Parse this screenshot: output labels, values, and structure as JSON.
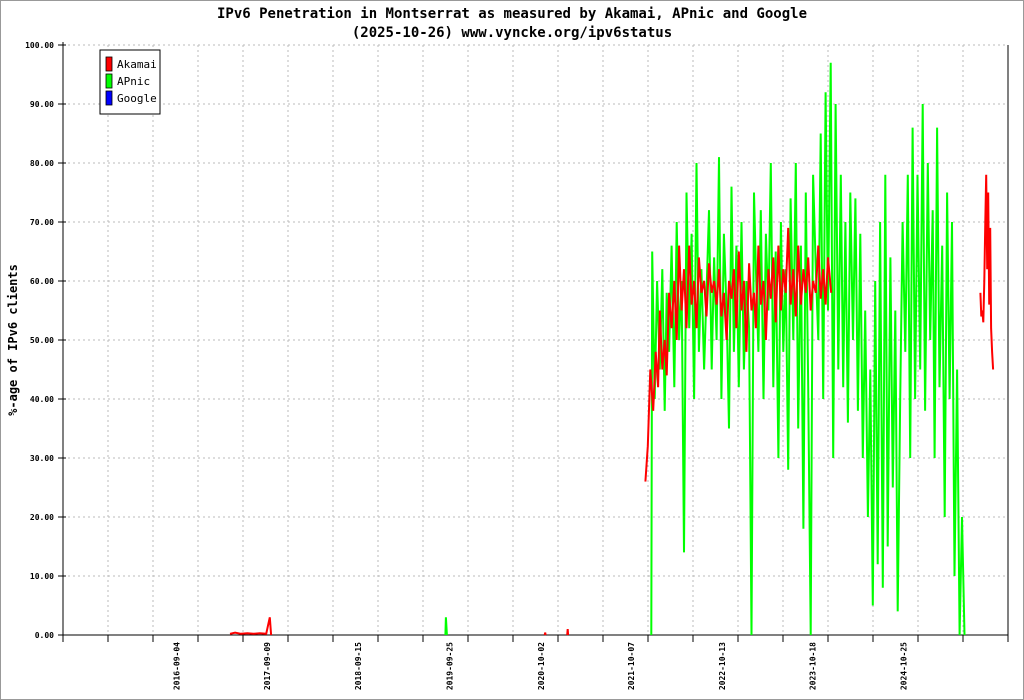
{
  "chart_data": {
    "type": "line",
    "title": "IPv6 Penetration in Montserrat as measured by Akamai, APnic and Google",
    "subtitle": "(2025-10-26) www.vyncke.org/ipv6status",
    "xlabel": "",
    "ylabel": "%-age of IPv6 clients",
    "ylim": [
      0,
      100
    ],
    "xlim": [
      "2015-05-28",
      "2025-12-26"
    ],
    "yticks": [
      "0.00",
      "10.00",
      "20.00",
      "30.00",
      "40.00",
      "50.00",
      "60.00",
      "70.00",
      "80.00",
      "90.00",
      "100.00"
    ],
    "xticks": [
      "2016-09-04",
      "2017-09-09",
      "2018-09-15",
      "2019-09-25",
      "2020-10-02",
      "2021-10-07",
      "2022-10-13",
      "2023-10-18",
      "2024-10-25"
    ],
    "grid": true,
    "legend_position": "top-left",
    "series": [
      {
        "name": "Akamai",
        "color": "#ff0000",
        "points": [
          [
            "2017-04-10",
            0.2
          ],
          [
            "2017-05-01",
            0.4
          ],
          [
            "2017-05-25",
            0.2
          ],
          [
            "2017-06-20",
            0.3
          ],
          [
            "2017-07-15",
            0.2
          ],
          [
            "2017-08-10",
            0.3
          ],
          [
            "2017-09-05",
            0.2
          ],
          [
            "2017-09-20",
            3
          ],
          [
            "2017-09-25",
            0
          ],
          [
            "2020-10-18",
            0
          ],
          [
            "2020-10-20",
            0.4
          ],
          [
            "2020-10-22",
            0
          ],
          [
            "2021-01-18",
            0
          ],
          [
            "2021-01-20",
            1
          ],
          [
            "2021-01-22",
            0
          ],
          [
            "2021-12-04",
            26
          ],
          [
            "2021-12-14",
            32
          ],
          [
            "2021-12-24",
            45
          ],
          [
            "2022-01-05",
            38
          ],
          [
            "2022-01-15",
            48
          ],
          [
            "2022-01-25",
            42
          ],
          [
            "2022-02-01",
            55
          ],
          [
            "2022-02-11",
            45
          ],
          [
            "2022-02-21",
            50
          ],
          [
            "2022-03-01",
            44
          ],
          [
            "2022-03-11",
            58
          ],
          [
            "2022-03-21",
            52
          ],
          [
            "2022-04-01",
            60
          ],
          [
            "2022-04-11",
            50
          ],
          [
            "2022-04-21",
            66
          ],
          [
            "2022-05-01",
            55
          ],
          [
            "2022-05-11",
            62
          ],
          [
            "2022-05-21",
            52
          ],
          [
            "2022-06-01",
            66
          ],
          [
            "2022-06-11",
            56
          ],
          [
            "2022-06-21",
            60
          ],
          [
            "2022-07-01",
            52
          ],
          [
            "2022-07-11",
            64
          ],
          [
            "2022-07-21",
            58
          ],
          [
            "2022-08-01",
            60
          ],
          [
            "2022-08-11",
            54
          ],
          [
            "2022-08-21",
            63
          ],
          [
            "2022-09-01",
            58
          ],
          [
            "2022-09-11",
            60
          ],
          [
            "2022-09-21",
            56
          ],
          [
            "2022-10-01",
            62
          ],
          [
            "2022-10-11",
            54
          ],
          [
            "2022-10-21",
            58
          ],
          [
            "2022-11-01",
            50
          ],
          [
            "2022-11-11",
            60
          ],
          [
            "2022-11-21",
            57
          ],
          [
            "2022-12-01",
            62
          ],
          [
            "2022-12-11",
            52
          ],
          [
            "2022-12-21",
            65
          ],
          [
            "2023-01-01",
            55
          ],
          [
            "2023-01-11",
            60
          ],
          [
            "2023-01-21",
            48
          ],
          [
            "2023-02-01",
            63
          ],
          [
            "2023-02-11",
            55
          ],
          [
            "2023-02-21",
            58
          ],
          [
            "2023-03-01",
            52
          ],
          [
            "2023-03-11",
            66
          ],
          [
            "2023-03-21",
            56
          ],
          [
            "2023-04-01",
            60
          ],
          [
            "2023-04-11",
            50
          ],
          [
            "2023-04-21",
            62
          ],
          [
            "2023-05-01",
            57
          ],
          [
            "2023-05-11",
            64
          ],
          [
            "2023-05-21",
            53
          ],
          [
            "2023-06-01",
            66
          ],
          [
            "2023-06-11",
            55
          ],
          [
            "2023-06-21",
            62
          ],
          [
            "2023-07-01",
            58
          ],
          [
            "2023-07-11",
            69
          ],
          [
            "2023-07-21",
            56
          ],
          [
            "2023-08-01",
            62
          ],
          [
            "2023-08-11",
            54
          ],
          [
            "2023-08-21",
            66
          ],
          [
            "2023-09-01",
            56
          ],
          [
            "2023-09-11",
            62
          ],
          [
            "2023-09-21",
            58
          ],
          [
            "2023-10-01",
            64
          ],
          [
            "2023-10-11",
            55
          ],
          [
            "2023-10-21",
            60
          ],
          [
            "2023-11-01",
            58
          ],
          [
            "2023-11-11",
            66
          ],
          [
            "2023-11-21",
            57
          ],
          [
            "2023-12-01",
            62
          ],
          [
            "2023-12-11",
            56
          ],
          [
            "2023-12-21",
            64
          ],
          [
            "2024-01-03",
            58
          ],
          [
            "2025-09-04",
            58
          ],
          [
            "2025-09-08",
            54
          ],
          [
            "2025-09-12",
            55
          ],
          [
            "2025-09-16",
            53
          ],
          [
            "2025-09-20",
            60
          ],
          [
            "2025-09-24",
            70
          ],
          [
            "2025-09-28",
            78
          ],
          [
            "2025-10-02",
            62
          ],
          [
            "2025-10-06",
            75
          ],
          [
            "2025-10-10",
            56
          ],
          [
            "2025-10-14",
            69
          ],
          [
            "2025-10-18",
            52
          ],
          [
            "2025-10-22",
            48
          ],
          [
            "2025-10-26",
            45
          ]
        ]
      },
      {
        "name": "APnic",
        "color": "#00ff00",
        "points": [
          [
            "2018-09-10",
            0
          ],
          [
            "2019-09-08",
            0
          ],
          [
            "2019-09-10",
            3
          ],
          [
            "2019-09-12",
            1.5
          ],
          [
            "2019-09-14",
            0
          ],
          [
            "2021-12-28",
            0
          ],
          [
            "2022-01-01",
            65
          ],
          [
            "2022-01-11",
            40
          ],
          [
            "2022-01-21",
            60
          ],
          [
            "2022-02-01",
            45
          ],
          [
            "2022-02-11",
            62
          ],
          [
            "2022-02-21",
            38
          ],
          [
            "2022-03-01",
            58
          ],
          [
            "2022-03-11",
            48
          ],
          [
            "2022-03-21",
            66
          ],
          [
            "2022-04-01",
            42
          ],
          [
            "2022-04-11",
            70
          ],
          [
            "2022-04-21",
            50
          ],
          [
            "2022-05-01",
            60
          ],
          [
            "2022-05-11",
            14
          ],
          [
            "2022-05-21",
            75
          ],
          [
            "2022-06-01",
            52
          ],
          [
            "2022-06-11",
            68
          ],
          [
            "2022-06-21",
            40
          ],
          [
            "2022-07-01",
            80
          ],
          [
            "2022-07-11",
            48
          ],
          [
            "2022-07-21",
            62
          ],
          [
            "2022-08-01",
            45
          ],
          [
            "2022-08-11",
            58
          ],
          [
            "2022-08-21",
            72
          ],
          [
            "2022-09-01",
            45
          ],
          [
            "2022-09-11",
            64
          ],
          [
            "2022-09-21",
            50
          ],
          [
            "2022-10-01",
            81
          ],
          [
            "2022-10-11",
            40
          ],
          [
            "2022-10-21",
            68
          ],
          [
            "2022-11-01",
            55
          ],
          [
            "2022-11-11",
            35
          ],
          [
            "2022-11-21",
            76
          ],
          [
            "2022-12-01",
            48
          ],
          [
            "2022-12-11",
            66
          ],
          [
            "2022-12-21",
            42
          ],
          [
            "2023-01-01",
            70
          ],
          [
            "2023-01-11",
            45
          ],
          [
            "2023-01-21",
            60
          ],
          [
            "2023-02-01",
            52
          ],
          [
            "2023-02-11",
            0
          ],
          [
            "2023-02-21",
            75
          ],
          [
            "2023-03-01",
            62
          ],
          [
            "2023-03-11",
            48
          ],
          [
            "2023-03-21",
            72
          ],
          [
            "2023-04-01",
            40
          ],
          [
            "2023-04-11",
            68
          ],
          [
            "2023-04-21",
            55
          ],
          [
            "2023-05-01",
            80
          ],
          [
            "2023-05-11",
            42
          ],
          [
            "2023-05-21",
            65
          ],
          [
            "2023-06-01",
            30
          ],
          [
            "2023-06-11",
            70
          ],
          [
            "2023-06-21",
            48
          ],
          [
            "2023-07-01",
            62
          ],
          [
            "2023-07-11",
            28
          ],
          [
            "2023-07-21",
            74
          ],
          [
            "2023-08-01",
            50
          ],
          [
            "2023-08-11",
            80
          ],
          [
            "2023-08-21",
            35
          ],
          [
            "2023-09-01",
            66
          ],
          [
            "2023-09-11",
            18
          ],
          [
            "2023-09-21",
            75
          ],
          [
            "2023-10-01",
            42
          ],
          [
            "2023-10-11",
            0
          ],
          [
            "2023-10-21",
            78
          ],
          [
            "2023-11-01",
            62
          ],
          [
            "2023-11-11",
            50
          ],
          [
            "2023-11-21",
            85
          ],
          [
            "2023-12-01",
            40
          ],
          [
            "2023-12-11",
            92
          ],
          [
            "2023-12-21",
            55
          ],
          [
            "2024-01-01",
            97
          ],
          [
            "2024-01-11",
            30
          ],
          [
            "2024-01-21",
            90
          ],
          [
            "2024-02-01",
            45
          ],
          [
            "2024-02-11",
            78
          ],
          [
            "2024-02-21",
            42
          ],
          [
            "2024-03-01",
            70
          ],
          [
            "2024-03-11",
            36
          ],
          [
            "2024-03-21",
            75
          ],
          [
            "2024-04-01",
            50
          ],
          [
            "2024-04-11",
            74
          ],
          [
            "2024-04-21",
            38
          ],
          [
            "2024-05-01",
            68
          ],
          [
            "2024-05-11",
            30
          ],
          [
            "2024-05-21",
            55
          ],
          [
            "2024-06-01",
            20
          ],
          [
            "2024-06-11",
            45
          ],
          [
            "2024-06-21",
            5
          ],
          [
            "2024-07-01",
            60
          ],
          [
            "2024-07-11",
            12
          ],
          [
            "2024-07-21",
            70
          ],
          [
            "2024-08-01",
            8
          ],
          [
            "2024-08-11",
            78
          ],
          [
            "2024-08-21",
            15
          ],
          [
            "2024-09-01",
            64
          ],
          [
            "2024-09-11",
            25
          ],
          [
            "2024-09-21",
            55
          ],
          [
            "2024-10-01",
            4
          ],
          [
            "2024-10-11",
            40
          ],
          [
            "2024-10-21",
            70
          ],
          [
            "2024-11-01",
            48
          ],
          [
            "2024-11-11",
            78
          ],
          [
            "2024-11-21",
            30
          ],
          [
            "2024-12-01",
            86
          ],
          [
            "2024-12-11",
            40
          ],
          [
            "2024-12-21",
            78
          ],
          [
            "2025-01-01",
            45
          ],
          [
            "2025-01-11",
            90
          ],
          [
            "2025-01-21",
            38
          ],
          [
            "2025-02-01",
            80
          ],
          [
            "2025-02-11",
            50
          ],
          [
            "2025-02-21",
            72
          ],
          [
            "2025-03-01",
            30
          ],
          [
            "2025-03-11",
            86
          ],
          [
            "2025-03-21",
            42
          ],
          [
            "2025-04-01",
            66
          ],
          [
            "2025-04-11",
            20
          ],
          [
            "2025-04-21",
            75
          ],
          [
            "2025-05-01",
            40
          ],
          [
            "2025-05-11",
            70
          ],
          [
            "2025-05-21",
            10
          ],
          [
            "2025-06-01",
            45
          ],
          [
            "2025-06-11",
            0
          ],
          [
            "2025-06-21",
            20
          ],
          [
            "2025-07-01",
            0
          ]
        ]
      },
      {
        "name": "Google",
        "color": "#0000ff",
        "points": [
          [
            "2015-08-31",
            0
          ],
          [
            "2025-10-26",
            0
          ]
        ]
      }
    ]
  }
}
